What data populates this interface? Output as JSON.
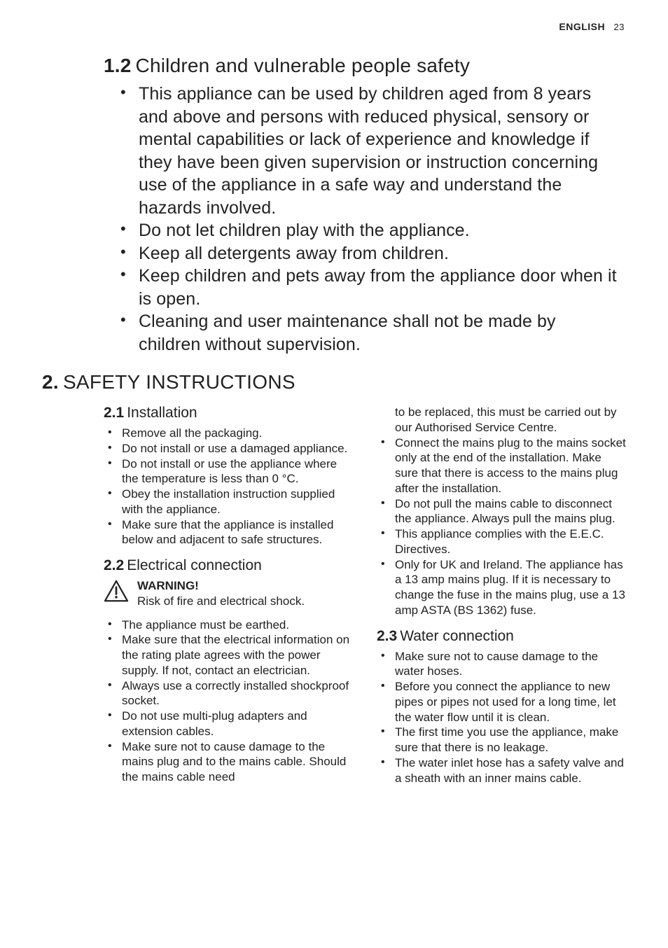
{
  "header": {
    "language": "ENGLISH",
    "page_number": "23"
  },
  "colors": {
    "text": "#222222",
    "background": "#ffffff"
  },
  "typography": {
    "body_family": "Helvetica Neue, Helvetica, Arial, sans-serif",
    "h_section_fontsize_pt": 21,
    "h_subsection_fontsize_pt": 16,
    "big_bullet_fontsize_pt": 19,
    "small_bullet_fontsize_pt": 13
  },
  "section_1_2": {
    "number": "1.2",
    "title": "Children and vulnerable people safety",
    "bullets": [
      "This appliance can be used by children aged from 8 years and above and persons with reduced physical, sensory or mental capabilities or lack of experience and knowledge if they have been given supervision or instruction concerning use of the appliance in a safe way and understand the hazards involved.",
      "Do not let children play with the appliance.",
      "Keep all detergents away from children.",
      "Keep children and pets away from the appliance door when it is open.",
      "Cleaning and user maintenance shall not be made by children without supervision."
    ]
  },
  "section_2": {
    "number": "2.",
    "title": "SAFETY INSTRUCTIONS"
  },
  "section_2_1": {
    "number": "2.1",
    "title": "Installation",
    "bullets": [
      "Remove all the packaging.",
      "Do not install or use a damaged appliance.",
      "Do not install or use the appliance where the temperature is less than 0 °C.",
      "Obey the installation instruction supplied with the appliance.",
      "Make sure that the appliance is installed below and adjacent to safe structures."
    ]
  },
  "section_2_2": {
    "number": "2.2",
    "title": "Electrical connection",
    "warning": {
      "label": "WARNING!",
      "text": "Risk of fire and electrical shock."
    },
    "bullets_col1": [
      "The appliance must be earthed.",
      "Make sure that the electrical information on the rating plate agrees with the power supply. If not, contact an electrician.",
      "Always use a correctly installed shockproof socket.",
      "Do not use multi-plug adapters and extension cables.",
      "Make sure not to cause damage to the mains plug and to the mains cable. Should the mains cable need"
    ],
    "bullets_col2": [
      "to be replaced, this must be carried out by our Authorised Service Centre.",
      "Connect the mains plug to the mains socket only at the end of the installation. Make sure that there is access to the mains plug after the installation.",
      "Do not pull the mains cable to disconnect the appliance. Always pull the mains plug.",
      "This appliance complies with the E.E.C. Directives.",
      "Only for UK and Ireland. The appliance has a 13 amp mains plug. If it is necessary to change the fuse in the mains plug, use a 13 amp ASTA (BS 1362) fuse."
    ]
  },
  "section_2_3": {
    "number": "2.3",
    "title": "Water connection",
    "bullets": [
      "Make sure not to cause damage to the water hoses.",
      "Before you connect the appliance to new pipes or pipes not used for a long time, let the water flow until it is clean.",
      "The first time you use the appliance, make sure that there is no leakage.",
      "The water inlet hose has a safety valve and a sheath with an inner mains cable."
    ]
  }
}
